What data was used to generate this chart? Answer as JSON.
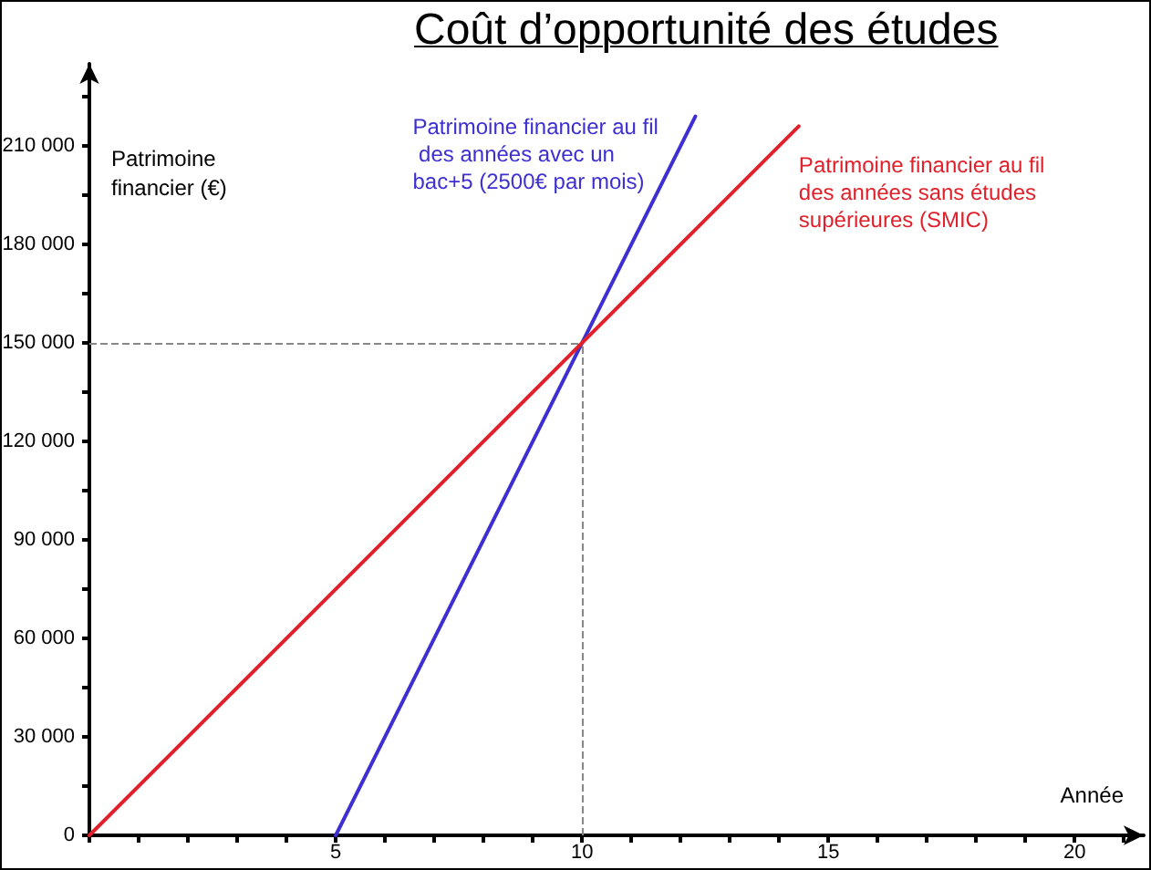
{
  "chart_data": {
    "type": "line",
    "title": "Coût d’opportunité des études",
    "xlabel": "Année",
    "ylabel": "Patrimoine financier (€)",
    "series": [
      {
        "name": "Patrimoine financier au fil des années avec un bac+5 (2500€ par mois)",
        "color": "#3d2fd2",
        "x": [
          5,
          12.3
        ],
        "values": [
          0,
          219000
        ]
      },
      {
        "name": "Patrimoine financier au fil des années sans études supérieures (SMIC)",
        "color": "#e0202a",
        "x": [
          0,
          14.4
        ],
        "values": [
          0,
          216000
        ]
      }
    ],
    "xlim": [
      0,
      21.4
    ],
    "xticks": [
      {
        "value": 0,
        "label": null
      },
      {
        "value": 1,
        "label": null
      },
      {
        "value": 2,
        "label": null
      },
      {
        "value": 3,
        "label": null
      },
      {
        "value": 4,
        "label": null
      },
      5,
      {
        "value": 6,
        "label": null
      },
      {
        "value": 7,
        "label": null
      },
      {
        "value": 8,
        "label": null
      },
      {
        "value": 9,
        "label": null
      },
      10,
      {
        "value": 11,
        "label": null
      },
      {
        "value": 12,
        "label": null
      },
      {
        "value": 13,
        "label": null
      },
      {
        "value": 14,
        "label": null
      },
      15,
      {
        "value": 16,
        "label": null
      },
      {
        "value": 17,
        "label": null
      },
      {
        "value": 18,
        "label": null
      },
      {
        "value": 19,
        "label": null
      },
      20,
      {
        "value": 21,
        "label": null
      }
    ],
    "ylim": [
      0,
      235000
    ],
    "yticks": [
      0,
      {
        "value": 15000,
        "label": null
      },
      {
        "value": 30000,
        "label": "30 000"
      },
      {
        "value": 45000,
        "label": null
      },
      {
        "value": 60000,
        "label": "60 000"
      },
      {
        "value": 75000,
        "label": null
      },
      {
        "value": 90000,
        "label": "90 000"
      },
      {
        "value": 105000,
        "label": null
      },
      {
        "value": 120000,
        "label": "120 000"
      },
      {
        "value": 135000,
        "label": null
      },
      {
        "value": 150000,
        "label": "150 000"
      },
      {
        "value": 165000,
        "label": null
      },
      {
        "value": 180000,
        "label": "180 000"
      },
      {
        "value": 195000,
        "label": null
      },
      {
        "value": 210000,
        "label": "210 000"
      },
      {
        "value": 225000,
        "label": null
      }
    ],
    "ref_lines": [
      {
        "axis": "x",
        "value": 10,
        "color": "#888888",
        "line_style": "dashed"
      },
      {
        "axis": "y",
        "value": 150000,
        "color": "#888888",
        "line_style": "dashed"
      }
    ],
    "marker": "none",
    "line_style": "solid"
  }
}
